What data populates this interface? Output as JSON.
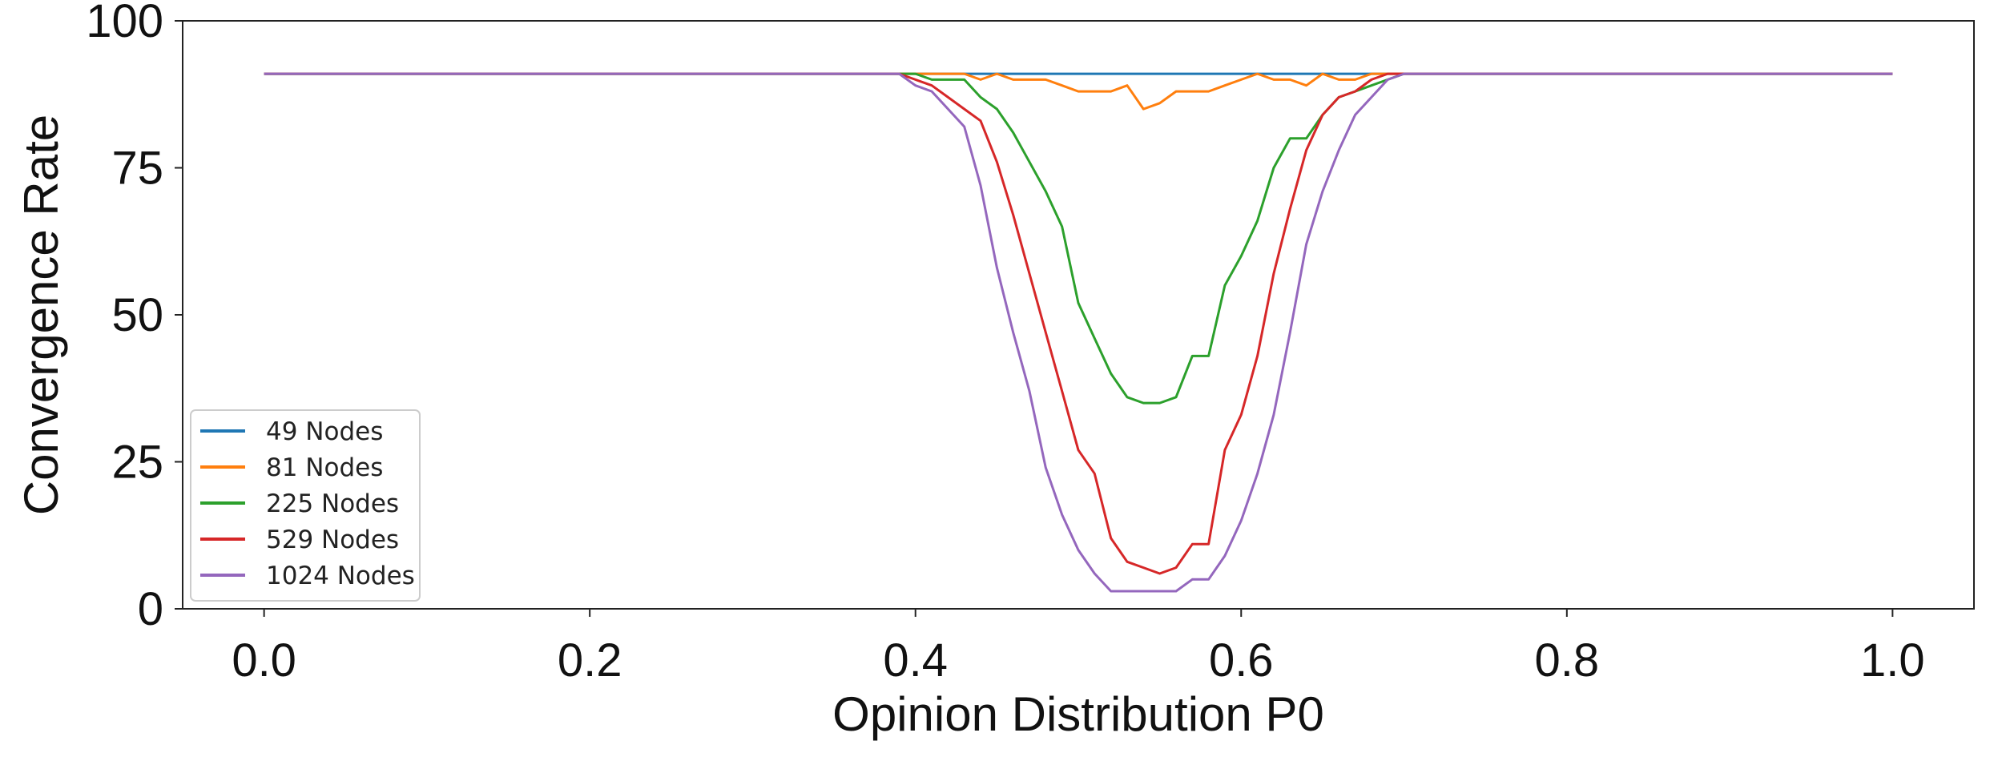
{
  "chart_data": {
    "type": "line",
    "title": "",
    "xlabel": "Opinion Distribution P0",
    "ylabel": "Convergence Rate",
    "xlim": [
      -0.05,
      1.05
    ],
    "ylim": [
      0,
      100
    ],
    "x_ticks": [
      "0.0",
      "0.2",
      "0.4",
      "0.6",
      "0.8",
      "1.0"
    ],
    "y_ticks": [
      "0",
      "25",
      "50",
      "75",
      "100"
    ],
    "grid": false,
    "legend_position": "lower-left",
    "series": [
      {
        "name": "49 Nodes",
        "color": "#1f77b4",
        "x": [
          0.0,
          0.4,
          0.7,
          1.0
        ],
        "y": [
          91,
          91,
          91,
          91
        ]
      },
      {
        "name": "81 Nodes",
        "color": "#ff7f0e",
        "x": [
          0.0,
          0.4,
          0.43,
          0.44,
          0.45,
          0.46,
          0.47,
          0.48,
          0.49,
          0.5,
          0.51,
          0.52,
          0.53,
          0.54,
          0.55,
          0.56,
          0.57,
          0.58,
          0.59,
          0.6,
          0.61,
          0.62,
          0.63,
          0.64,
          0.65,
          0.66,
          0.67,
          0.68,
          0.7,
          1.0
        ],
        "y": [
          91,
          91,
          91,
          90,
          91,
          90,
          90,
          90,
          89,
          88,
          88,
          88,
          89,
          85,
          86,
          88,
          88,
          88,
          89,
          90,
          91,
          90,
          90,
          89,
          91,
          90,
          90,
          91,
          91,
          91
        ]
      },
      {
        "name": "225 Nodes",
        "color": "#2ca02c",
        "x": [
          0.0,
          0.39,
          0.4,
          0.41,
          0.42,
          0.43,
          0.44,
          0.45,
          0.46,
          0.47,
          0.48,
          0.49,
          0.5,
          0.51,
          0.52,
          0.53,
          0.54,
          0.55,
          0.56,
          0.57,
          0.58,
          0.59,
          0.6,
          0.61,
          0.62,
          0.63,
          0.64,
          0.65,
          0.66,
          0.67,
          0.68,
          0.69,
          0.7,
          1.0
        ],
        "y": [
          91,
          91,
          91,
          90,
          90,
          90,
          87,
          85,
          81,
          76,
          71,
          65,
          52,
          46,
          40,
          36,
          35,
          35,
          36,
          43,
          43,
          55,
          60,
          66,
          75,
          80,
          80,
          84,
          87,
          88,
          89,
          90,
          91,
          91
        ]
      },
      {
        "name": "529 Nodes",
        "color": "#d62728",
        "x": [
          0.0,
          0.39,
          0.4,
          0.41,
          0.42,
          0.43,
          0.44,
          0.45,
          0.46,
          0.47,
          0.48,
          0.49,
          0.5,
          0.51,
          0.52,
          0.53,
          0.54,
          0.55,
          0.56,
          0.57,
          0.58,
          0.59,
          0.6,
          0.61,
          0.62,
          0.63,
          0.64,
          0.65,
          0.66,
          0.67,
          0.68,
          0.69,
          0.7,
          1.0
        ],
        "y": [
          91,
          91,
          90,
          89,
          87,
          85,
          83,
          76,
          67,
          57,
          47,
          37,
          27,
          23,
          12,
          8,
          7,
          6,
          7,
          11,
          11,
          27,
          33,
          43,
          57,
          68,
          78,
          84,
          87,
          88,
          90,
          91,
          91,
          91
        ]
      },
      {
        "name": "1024 Nodes",
        "color": "#9467bd",
        "x": [
          0.0,
          0.39,
          0.4,
          0.41,
          0.42,
          0.43,
          0.44,
          0.45,
          0.46,
          0.47,
          0.48,
          0.49,
          0.5,
          0.51,
          0.52,
          0.53,
          0.54,
          0.55,
          0.56,
          0.57,
          0.58,
          0.59,
          0.6,
          0.61,
          0.62,
          0.63,
          0.64,
          0.65,
          0.66,
          0.67,
          0.68,
          0.69,
          0.7,
          1.0
        ],
        "y": [
          91,
          91,
          89,
          88,
          85,
          82,
          72,
          58,
          47,
          37,
          24,
          16,
          10,
          6,
          3,
          3,
          3,
          3,
          3,
          5,
          5,
          9,
          15,
          23,
          33,
          47,
          62,
          71,
          78,
          84,
          87,
          90,
          91,
          91
        ]
      }
    ]
  }
}
